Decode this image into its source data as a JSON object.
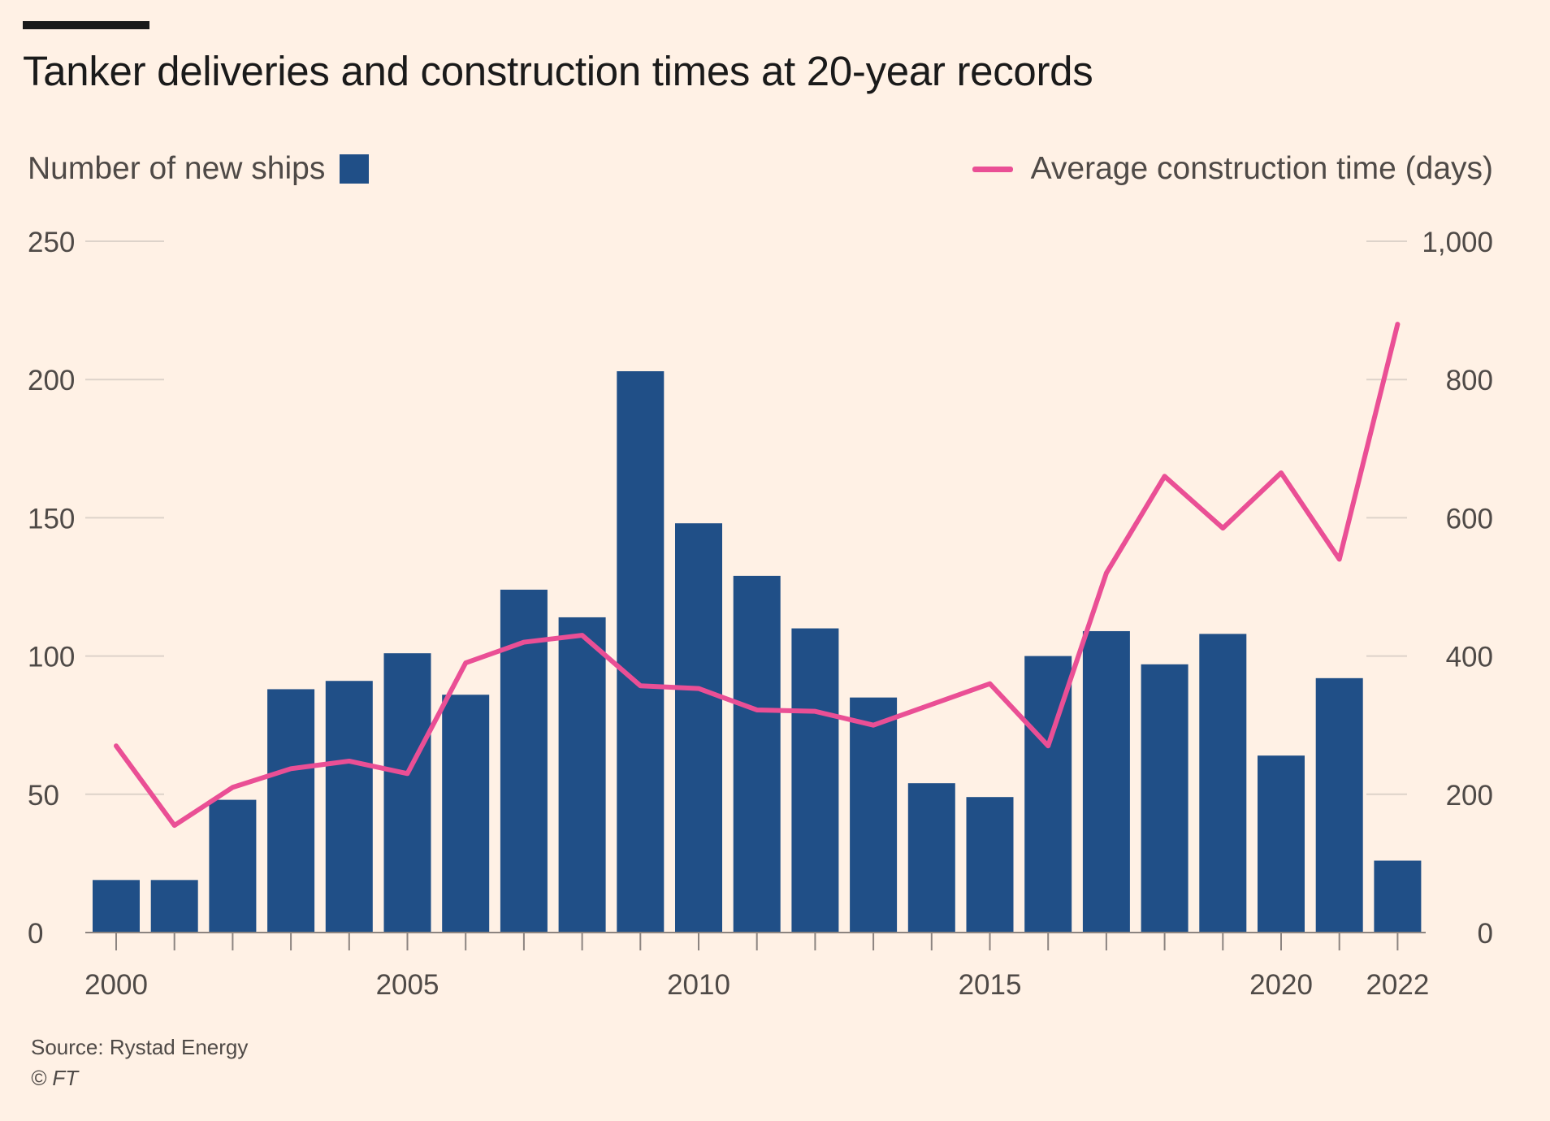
{
  "title": "Tanker deliveries and construction times at 20-year records",
  "legend": {
    "bars_label": "Number of new ships",
    "line_label": "Average construction time (days)"
  },
  "footer": {
    "source": "Source: Rystad Energy",
    "copyright": "© FT"
  },
  "colors": {
    "background": "#fff1e5",
    "bars": "#204f87",
    "line": "#ea4f95",
    "grid": "#ddd3ca",
    "text": "#4f4a47"
  },
  "chart_data": {
    "type": "bar+line",
    "x": [
      2000,
      2001,
      2002,
      2003,
      2004,
      2005,
      2006,
      2007,
      2008,
      2009,
      2010,
      2011,
      2012,
      2013,
      2014,
      2015,
      2016,
      2017,
      2018,
      2019,
      2020,
      2021,
      2022
    ],
    "x_tick_labels": [
      "2000",
      "2005",
      "2010",
      "2015",
      "2020",
      "2022"
    ],
    "x_tick_values": [
      2000,
      2005,
      2010,
      2015,
      2020,
      2022
    ],
    "left_axis": {
      "ylim": [
        0,
        250
      ],
      "ticks": [
        0,
        50,
        100,
        150,
        200,
        250
      ],
      "tick_labels": [
        "0",
        "50",
        "100",
        "150",
        "200",
        "250"
      ]
    },
    "right_axis": {
      "ylim": [
        0,
        1000
      ],
      "ticks": [
        0,
        200,
        400,
        600,
        800,
        1000
      ],
      "tick_labels": [
        "0",
        "200",
        "400",
        "600",
        "800",
        "1,000"
      ]
    },
    "series": [
      {
        "name": "Number of new ships",
        "type": "bar",
        "axis": "left",
        "values": [
          19,
          19,
          48,
          88,
          91,
          101,
          86,
          124,
          114,
          203,
          148,
          129,
          110,
          85,
          54,
          49,
          100,
          109,
          97,
          108,
          64,
          92,
          26
        ]
      },
      {
        "name": "Average construction time (days)",
        "type": "line",
        "axis": "right",
        "values": [
          270,
          155,
          210,
          237,
          248,
          230,
          390,
          420,
          430,
          357,
          353,
          322,
          320,
          300,
          330,
          360,
          270,
          520,
          660,
          585,
          665,
          540,
          880
        ]
      }
    ],
    "grid": "left-and-right-stubs",
    "legend_placement": "top"
  }
}
